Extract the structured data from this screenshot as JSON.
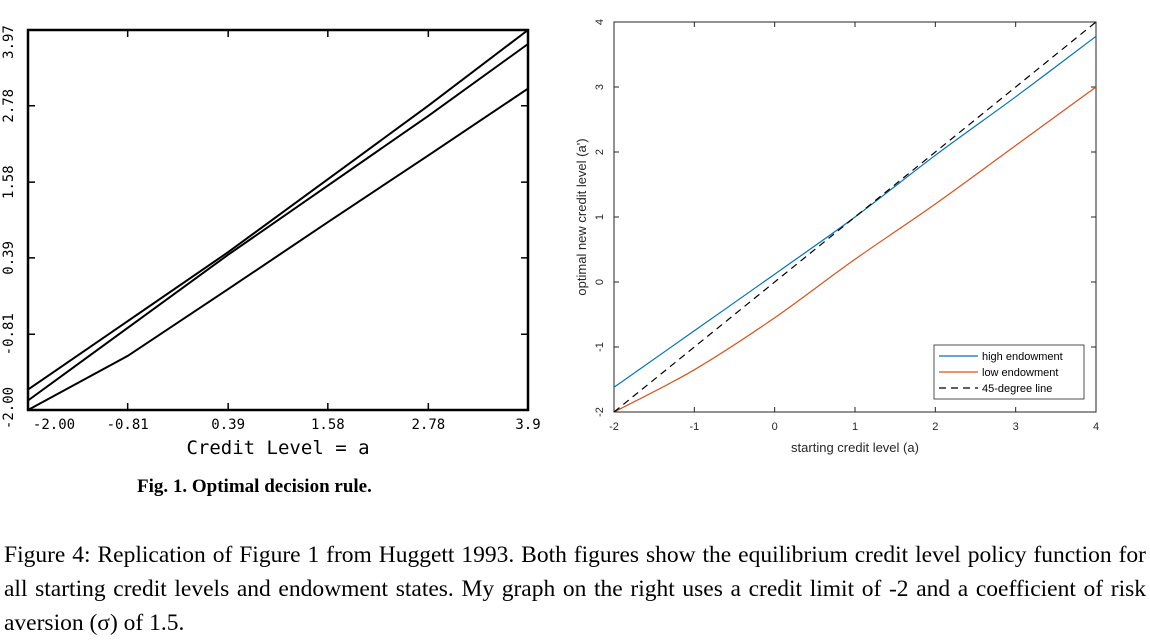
{
  "chart_data": [
    {
      "type": "line",
      "title": "",
      "xlabel": "Credit Level = a",
      "ylabel": "",
      "xlim": [
        -2.0,
        3.97
      ],
      "ylim": [
        -2.0,
        3.97
      ],
      "x_ticks": [
        "-2.00",
        "-0.81",
        "0.39",
        "1.58",
        "2.78",
        "3.9"
      ],
      "y_ticks": [
        "-2.00",
        "-0.81",
        "0.39",
        "1.58",
        "2.78",
        "3.97"
      ],
      "caption": "Fig. 1. Optimal decision rule.",
      "series": [
        {
          "x": [
            -2.0,
            0.39,
            2.78,
            3.97
          ],
          "y": [
            -1.68,
            0.48,
            2.78,
            3.97
          ]
        },
        {
          "x": [
            -2.0,
            0.39,
            2.78,
            3.97
          ],
          "y": [
            -1.85,
            0.44,
            2.62,
            3.75
          ]
        },
        {
          "x": [
            -2.0,
            -0.81,
            0.39,
            1.58,
            2.78,
            3.97
          ],
          "y": [
            -2.0,
            -1.15,
            -0.1,
            0.95,
            2.0,
            3.05
          ]
        }
      ]
    },
    {
      "type": "line",
      "title": "",
      "xlabel": "starting credit level (a)",
      "ylabel": "optimal new credit level (a')",
      "xlim": [
        -2,
        4
      ],
      "ylim": [
        -2,
        4
      ],
      "x_ticks": [
        "-2",
        "-1",
        "0",
        "1",
        "2",
        "3",
        "4"
      ],
      "y_ticks": [
        "-2",
        "-1",
        "0",
        "1",
        "2",
        "3",
        "4"
      ],
      "legend_position": "bottom-right",
      "series": [
        {
          "name": "high endowment",
          "color": "#0072bd",
          "x": [
            -2,
            -1,
            0,
            1,
            2,
            3,
            4
          ],
          "y": [
            -1.62,
            -0.75,
            0.12,
            1.0,
            1.95,
            2.85,
            3.78
          ]
        },
        {
          "name": "low endowment",
          "color": "#d95319",
          "x": [
            -2,
            -1,
            0,
            1,
            2,
            3,
            4
          ],
          "y": [
            -2.0,
            -1.35,
            -0.55,
            0.35,
            1.2,
            2.1,
            3.0
          ]
        },
        {
          "name": "45-degree line",
          "color": "#000000",
          "dash": true,
          "x": [
            -2,
            4
          ],
          "y": [
            -2,
            4
          ]
        }
      ]
    }
  ],
  "caption_text": "Figure 4: Replication of Figure 1 from Huggett 1993. Both figures show the equilibrium credit level policy function for all starting credit levels and endowment states. My graph on the right uses a credit limit of -2 and a coefficient of risk aversion (σ) of 1.5."
}
